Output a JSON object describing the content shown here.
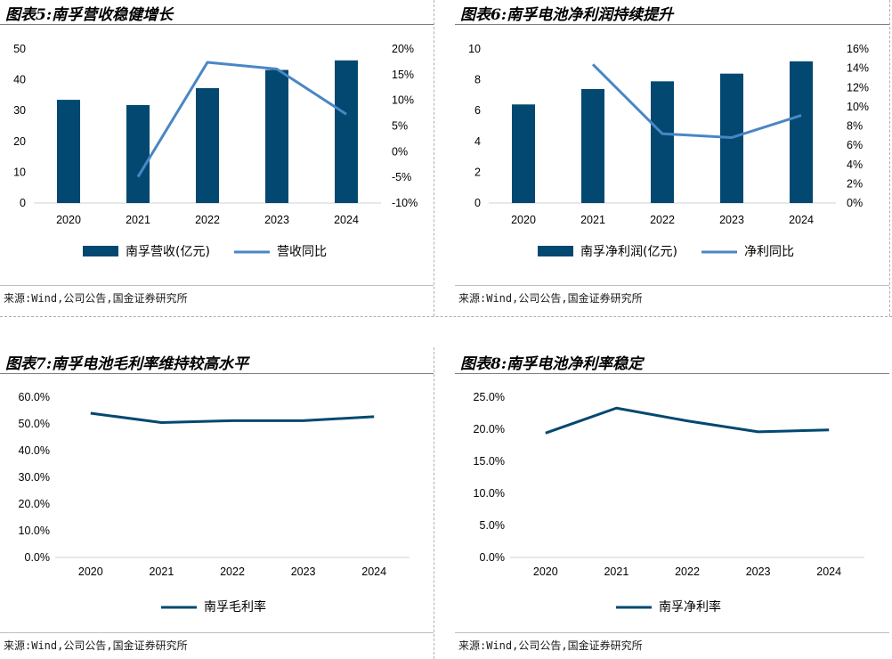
{
  "colors": {
    "bar": "#034870",
    "line_light": "#4a86c5",
    "line_dark": "#034870"
  },
  "charts": [
    {
      "id": "fig5",
      "title": "图表5:南孚营收稳健增长",
      "source": "来源:Wind,公司公告,国金证券研究所",
      "legend_bar": "南孚营收(亿元)",
      "legend_line": "营收同比",
      "left_ticks": [
        "50",
        "40",
        "30",
        "20",
        "10",
        "0"
      ],
      "right_ticks": [
        "20%",
        "15%",
        "10%",
        "5%",
        "0%",
        "-5%",
        "-10%"
      ]
    },
    {
      "id": "fig6",
      "title": "图表6:南孚电池净利润持续提升",
      "source": "来源:Wind,公司公告,国金证券研究所",
      "legend_bar": "南孚净利润(亿元)",
      "legend_line": "净利同比",
      "left_ticks": [
        "10",
        "8",
        "6",
        "4",
        "2",
        "0"
      ],
      "right_ticks": [
        "16%",
        "14%",
        "12%",
        "10%",
        "8%",
        "6%",
        "4%",
        "2%",
        "0%"
      ]
    },
    {
      "id": "fig7",
      "title": "图表7:南孚电池毛利率维持较高水平",
      "source": "来源:Wind,公司公告,国金证券研究所",
      "legend_line": "南孚毛利率",
      "left_ticks": [
        "60.0%",
        "50.0%",
        "40.0%",
        "30.0%",
        "20.0%",
        "10.0%",
        "0.0%"
      ]
    },
    {
      "id": "fig8",
      "title": "图表8:南孚电池净利率稳定",
      "source": "来源:Wind,公司公告,国金证券研究所",
      "legend_line": "南孚净利率",
      "left_ticks": [
        "25.0%",
        "20.0%",
        "15.0%",
        "10.0%",
        "5.0%",
        "0.0%"
      ]
    }
  ],
  "chart_data": [
    {
      "type": "bar+line",
      "title": "图表5:南孚营收稳健增长",
      "categories": [
        "2020",
        "2021",
        "2022",
        "2023",
        "2024"
      ],
      "series": [
        {
          "name": "南孚营收(亿元)",
          "type": "bar",
          "axis": "left",
          "values": [
            33.5,
            31.8,
            37.3,
            43.2,
            46.3
          ]
        },
        {
          "name": "营收同比",
          "type": "line",
          "axis": "right",
          "values": [
            null,
            -4.9,
            17.4,
            16.1,
            7.3
          ]
        }
      ],
      "ylim_left": [
        0,
        50
      ],
      "ylim_right": [
        -10,
        20
      ]
    },
    {
      "type": "bar+line",
      "title": "图表6:南孚电池净利润持续提升",
      "categories": [
        "2020",
        "2021",
        "2022",
        "2023",
        "2024"
      ],
      "series": [
        {
          "name": "南孚净利润(亿元)",
          "type": "bar",
          "axis": "left",
          "values": [
            6.4,
            7.4,
            7.9,
            8.4,
            9.2
          ]
        },
        {
          "name": "净利同比",
          "type": "line",
          "axis": "right",
          "values": [
            null,
            14.4,
            7.2,
            6.8,
            9.1
          ]
        }
      ],
      "ylim_left": [
        0,
        10
      ],
      "ylim_right": [
        0,
        16
      ]
    },
    {
      "type": "line",
      "title": "图表7:南孚电池毛利率维持较高水平",
      "categories": [
        "2020",
        "2021",
        "2022",
        "2023",
        "2024"
      ],
      "series": [
        {
          "name": "南孚毛利率",
          "values": [
            54.0,
            50.5,
            51.2,
            51.2,
            52.7
          ]
        }
      ],
      "ylim": [
        0,
        60
      ]
    },
    {
      "type": "line",
      "title": "图表8:南孚电池净利率稳定",
      "categories": [
        "2020",
        "2021",
        "2022",
        "2023",
        "2024"
      ],
      "series": [
        {
          "name": "南孚净利率",
          "values": [
            19.4,
            23.3,
            21.3,
            19.6,
            19.9
          ]
        }
      ],
      "ylim": [
        0,
        25
      ]
    }
  ]
}
